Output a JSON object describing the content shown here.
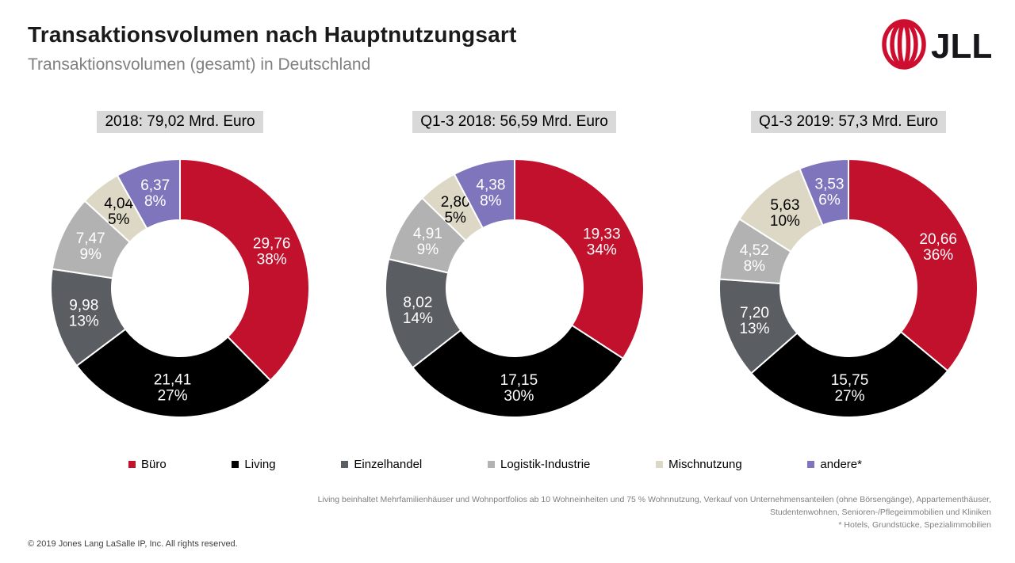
{
  "header": {
    "title": "Transaktionsvolumen nach Hauptnutzungsart",
    "subtitle": "Transaktionsvolumen (gesamt) in Deutschland",
    "logo_text": "JLL",
    "logo_color": "#CE0E2E",
    "logo_text_color": "#17171B"
  },
  "colors": {
    "chart_title_background": "#D9D9D9",
    "subtitle_gray": "#808080",
    "footnote_gray": "#7F7F7F",
    "buero_red": "#C2112D",
    "living_black": "#000000",
    "einzelhandel_darkgray": "#5A5D61",
    "logistik_lightgray": "#B2B2B2",
    "mischnutzung_beige": "#DDD8C5",
    "andere_purple": "#7F75BC"
  },
  "chart_data": [
    {
      "type": "pie",
      "variant": "donut",
      "title": "2018: 79,02 Mrd. Euro",
      "unit": "Mrd. Euro",
      "total": 79.02,
      "segments": [
        {
          "name": "Büro",
          "value": 29.76,
          "value_label": "29,76",
          "pct_label": "38%",
          "color": "#C2112D",
          "text_color": "#FFFFFF"
        },
        {
          "name": "Living",
          "value": 21.41,
          "value_label": "21,41",
          "pct_label": "27%",
          "color": "#000000",
          "text_color": "#FFFFFF"
        },
        {
          "name": "Einzelhandel",
          "value": 9.98,
          "value_label": "9,98",
          "pct_label": "13%",
          "color": "#5A5D61",
          "text_color": "#FFFFFF"
        },
        {
          "name": "Logistik-Industrie",
          "value": 7.47,
          "value_label": "7,47",
          "pct_label": "9%",
          "color": "#B2B2B2",
          "text_color": "#FFFFFF"
        },
        {
          "name": "Mischnutzung",
          "value": 4.04,
          "value_label": "4,04",
          "pct_label": "5%",
          "color": "#DDD8C5",
          "text_color": "#000000"
        },
        {
          "name": "andere*",
          "value": 6.37,
          "value_label": "6,37",
          "pct_label": "8%",
          "color": "#7F75BC",
          "text_color": "#FFFFFF"
        }
      ]
    },
    {
      "type": "pie",
      "variant": "donut",
      "title": "Q1-3 2018: 56,59 Mrd. Euro",
      "unit": "Mrd. Euro",
      "total": 56.59,
      "segments": [
        {
          "name": "Büro",
          "value": 19.33,
          "value_label": "19,33",
          "pct_label": "34%",
          "color": "#C2112D",
          "text_color": "#FFFFFF"
        },
        {
          "name": "Living",
          "value": 17.15,
          "value_label": "17,15",
          "pct_label": "30%",
          "color": "#000000",
          "text_color": "#FFFFFF"
        },
        {
          "name": "Einzelhandel",
          "value": 8.02,
          "value_label": "8,02",
          "pct_label": "14%",
          "color": "#5A5D61",
          "text_color": "#FFFFFF"
        },
        {
          "name": "Logistik-Industrie",
          "value": 4.91,
          "value_label": "4,91",
          "pct_label": "9%",
          "color": "#B2B2B2",
          "text_color": "#FFFFFF"
        },
        {
          "name": "Mischnutzung",
          "value": 2.8,
          "value_label": "2,80",
          "pct_label": "5%",
          "color": "#DDD8C5",
          "text_color": "#000000"
        },
        {
          "name": "andere*",
          "value": 4.38,
          "value_label": "4,38",
          "pct_label": "8%",
          "color": "#7F75BC",
          "text_color": "#FFFFFF"
        }
      ]
    },
    {
      "type": "pie",
      "variant": "donut",
      "title": "Q1-3 2019: 57,3 Mrd. Euro",
      "unit": "Mrd. Euro",
      "total": 57.3,
      "segments": [
        {
          "name": "Büro",
          "value": 20.66,
          "value_label": "20,66",
          "pct_label": "36%",
          "color": "#C2112D",
          "text_color": "#FFFFFF"
        },
        {
          "name": "Living",
          "value": 15.75,
          "value_label": "15,75",
          "pct_label": "27%",
          "color": "#000000",
          "text_color": "#FFFFFF"
        },
        {
          "name": "Einzelhandel",
          "value": 7.2,
          "value_label": "7,20",
          "pct_label": "13%",
          "color": "#5A5D61",
          "text_color": "#FFFFFF"
        },
        {
          "name": "Logistik-Industrie",
          "value": 4.52,
          "value_label": "4,52",
          "pct_label": "8%",
          "color": "#B2B2B2",
          "text_color": "#FFFFFF"
        },
        {
          "name": "Mischnutzung",
          "value": 5.63,
          "value_label": "5,63",
          "pct_label": "10%",
          "color": "#DDD8C5",
          "text_color": "#000000"
        },
        {
          "name": "andere*",
          "value": 3.53,
          "value_label": "3,53",
          "pct_label": "6%",
          "color": "#7F75BC",
          "text_color": "#FFFFFF"
        }
      ]
    }
  ],
  "legend": {
    "items": [
      {
        "label": "Büro",
        "color": "#C2112D"
      },
      {
        "label": "Living",
        "color": "#000000"
      },
      {
        "label": "Einzelhandel",
        "color": "#5A5D61"
      },
      {
        "label": "Logistik-Industrie",
        "color": "#B2B2B2"
      },
      {
        "label": "Mischnutzung",
        "color": "#DDD8C5"
      },
      {
        "label": "andere*",
        "color": "#7F75BC"
      }
    ]
  },
  "footnotes": {
    "line1": "Living beinhaltet Mehrfamilienhäuser und Wohnportfolios ab 10 Wohneinheiten und 75 % Wohnnutzung, Verkauf von Unternehmensanteilen (ohne Börsengänge), Appartementhäuser,",
    "line2": "Studentenwohnen, Senioren-/Pflegeimmobilien und Kliniken",
    "line3": "* Hotels, Grundstücke, Spezialimmobilien"
  },
  "footer": {
    "copyright": "© 2019 Jones Lang LaSalle IP, Inc. All rights reserved."
  }
}
